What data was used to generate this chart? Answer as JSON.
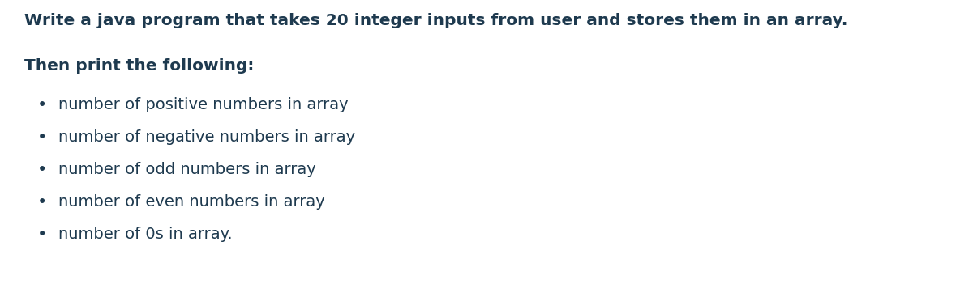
{
  "background_color": "#ffffff",
  "text_color": "#1e3a4f",
  "title_line1": "Write a java program that takes 20 integer inputs from user and stores them in an array.",
  "title_line2": "Then print the following:",
  "bullet_items": [
    "number of positive numbers in array",
    "number of negative numbers in array",
    "number of odd numbers in array",
    "number of even numbers in array",
    "number of 0s in array."
  ],
  "title_fontsize": 14.5,
  "subtitle_fontsize": 14.5,
  "bullet_fontsize": 14.0,
  "bullet_symbol": "•",
  "font_weight_title": "bold",
  "font_weight_bullet": "normal",
  "font_family": "DejaVu Sans"
}
